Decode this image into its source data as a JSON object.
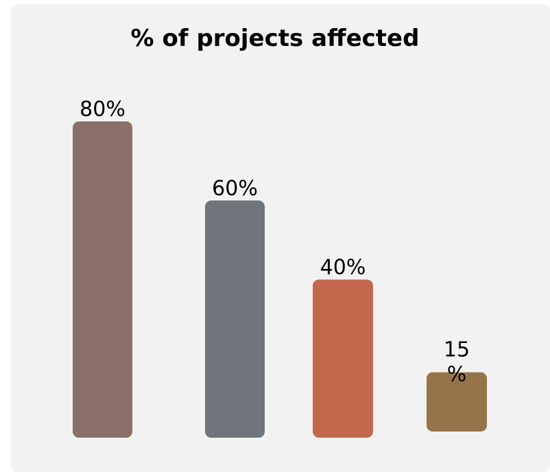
{
  "chart_data": {
    "type": "bar",
    "title": "% of projects affected",
    "xlabel": "",
    "ylabel": "",
    "categories": [],
    "values": [
      80,
      60,
      40,
      15
    ],
    "labels": [
      "80%",
      "60%",
      "40%",
      "15\n%"
    ],
    "colors": [
      "#8a7068",
      "#6f757a",
      "#c4684d",
      "#96744a"
    ],
    "ylim": [
      0,
      80
    ],
    "grid": false,
    "legend": "none"
  }
}
